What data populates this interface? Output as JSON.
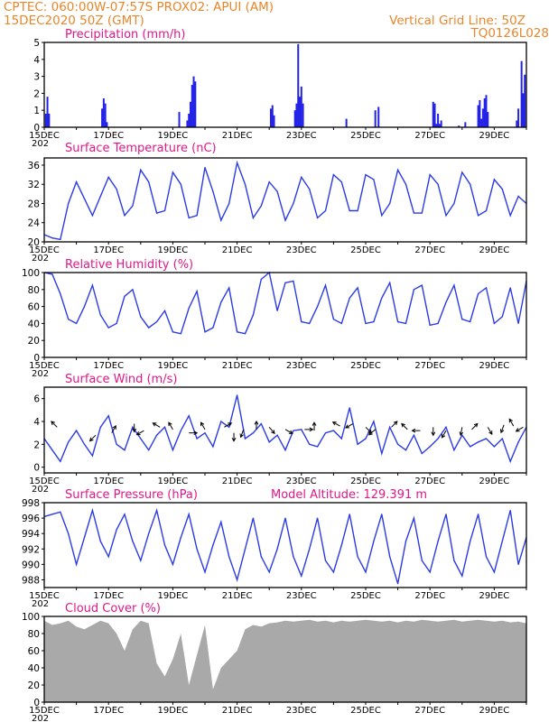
{
  "header": {
    "line1": "CPTEC:   060:00W-07:57S   PROX02: APUI (AM)",
    "line2_left": "15DEC2020 50Z (GMT)",
    "line2_right": "Vertical Grid Line: 50Z",
    "line3_right": "TQ0126L028"
  },
  "x_axis": {
    "start_label": "15DEC",
    "year_stub": "202",
    "days": 15,
    "tick_labels": [
      "15DEC",
      "17DEC",
      "19DEC",
      "21DEC",
      "23DEC",
      "25DEC",
      "27DEC",
      "29DEC"
    ]
  },
  "colors": {
    "line": "#2b3be6",
    "bar": "#2323e8",
    "cloud": "#a9a9a9",
    "title": "#e0188a",
    "header": "#e8862a",
    "arrow": "#000000"
  },
  "chart_data": [
    {
      "type": "bar",
      "title": "Precipitation (mm/h)",
      "ylim": [
        0,
        5
      ],
      "yticks": [
        0,
        1,
        2,
        3,
        4,
        5
      ],
      "x": [
        0.05,
        0.1,
        0.15,
        1.8,
        1.85,
        1.9,
        1.95,
        4.2,
        4.45,
        4.5,
        4.55,
        4.6,
        4.65,
        4.7,
        7.05,
        7.1,
        7.15,
        7.8,
        7.85,
        7.9,
        7.95,
        8.0,
        8.05,
        9.4,
        10.3,
        10.4,
        12.1,
        12.15,
        12.2,
        12.25,
        12.3,
        12.35,
        12.9,
        13.1,
        13.5,
        13.55,
        13.6,
        13.65,
        13.7,
        13.75,
        13.8,
        14.7,
        14.75,
        14.85,
        14.9,
        14.95
      ],
      "values": [
        0.8,
        1.8,
        0.8,
        1.1,
        1.7,
        1.4,
        0.3,
        0.9,
        0.4,
        0.8,
        1.5,
        2.5,
        3.0,
        2.7,
        1.1,
        1.3,
        0.7,
        1.0,
        1.4,
        4.9,
        1.8,
        2.4,
        1.4,
        0.5,
        1.0,
        1.2,
        1.5,
        1.4,
        0.2,
        0.8,
        0.2,
        0.4,
        0.1,
        0.3,
        1.3,
        1.6,
        0.5,
        1.1,
        1.7,
        1.9,
        0.9,
        0.4,
        1.1,
        3.9,
        2.0,
        3.1
      ]
    },
    {
      "type": "line",
      "title": "Surface Temperature (nC)",
      "ylim": [
        20,
        37.5
      ],
      "yticks": [
        20,
        24,
        28,
        32,
        36
      ],
      "x": [
        0,
        0.25,
        0.5,
        0.75,
        1,
        1.25,
        1.5,
        1.75,
        2,
        2.25,
        2.5,
        2.75,
        3,
        3.25,
        3.5,
        3.75,
        4,
        4.25,
        4.5,
        4.75,
        5,
        5.25,
        5.5,
        5.75,
        6,
        6.25,
        6.5,
        6.75,
        7,
        7.25,
        7.5,
        7.75,
        8,
        8.25,
        8.5,
        8.75,
        9,
        9.25,
        9.5,
        9.75,
        10,
        10.25,
        10.5,
        10.75,
        11,
        11.25,
        11.5,
        11.75,
        12,
        12.25,
        12.5,
        12.75,
        13,
        13.25,
        13.5,
        13.75,
        14,
        14.25,
        14.5,
        14.75,
        15
      ],
      "values": [
        21.5,
        20.8,
        20.5,
        28,
        32.5,
        29,
        25.5,
        29.5,
        33.5,
        31,
        25.5,
        27.5,
        35,
        32.5,
        26,
        26.5,
        34.5,
        32,
        25,
        25.5,
        35.5,
        30.5,
        24.5,
        28,
        36.5,
        32,
        25,
        27.5,
        32.5,
        30.5,
        24.5,
        28,
        33.5,
        31,
        25,
        26.5,
        34,
        32.5,
        26.5,
        26.5,
        34,
        33,
        25.5,
        28,
        35,
        32,
        26,
        26,
        34,
        32,
        25.5,
        28,
        34.5,
        32,
        25.5,
        26.5,
        33,
        31,
        25.5,
        29.5,
        28
      ]
    },
    {
      "type": "line",
      "title": "Relative Humidity (%)",
      "ylim": [
        0,
        100
      ],
      "yticks": [
        0,
        20,
        40,
        60,
        80,
        100
      ],
      "x": [
        0,
        0.25,
        0.5,
        0.75,
        1,
        1.25,
        1.5,
        1.75,
        2,
        2.25,
        2.5,
        2.75,
        3,
        3.25,
        3.5,
        3.75,
        4,
        4.25,
        4.5,
        4.75,
        5,
        5.25,
        5.5,
        5.75,
        6,
        6.25,
        6.5,
        6.75,
        7,
        7.25,
        7.5,
        7.75,
        8,
        8.25,
        8.5,
        8.75,
        9,
        9.25,
        9.5,
        9.75,
        10,
        10.25,
        10.5,
        10.75,
        11,
        11.25,
        11.5,
        11.75,
        12,
        12.25,
        12.5,
        12.75,
        13,
        13.25,
        13.5,
        13.75,
        14,
        14.25,
        14.5,
        14.75,
        15
      ],
      "values": [
        100,
        98,
        75,
        45,
        40,
        60,
        85,
        50,
        35,
        40,
        72,
        80,
        48,
        35,
        42,
        55,
        30,
        28,
        58,
        78,
        30,
        35,
        65,
        82,
        30,
        28,
        50,
        92,
        100,
        55,
        88,
        90,
        42,
        40,
        60,
        85,
        45,
        40,
        70,
        82,
        40,
        42,
        70,
        88,
        42,
        40,
        80,
        85,
        38,
        40,
        65,
        85,
        45,
        42,
        75,
        82,
        40,
        48,
        82,
        40,
        90
      ]
    },
    {
      "type": "line",
      "title": "Surface Wind (m/s)",
      "ylim": [
        -0.5,
        7
      ],
      "yticks": [
        0,
        2,
        4,
        6
      ],
      "x": [
        0,
        0.25,
        0.5,
        0.75,
        1,
        1.25,
        1.5,
        1.75,
        2,
        2.25,
        2.5,
        2.75,
        3,
        3.25,
        3.5,
        3.75,
        4,
        4.25,
        4.5,
        4.75,
        5,
        5.25,
        5.5,
        5.75,
        6,
        6.25,
        6.5,
        6.75,
        7,
        7.25,
        7.5,
        7.75,
        8,
        8.25,
        8.5,
        8.75,
        9,
        9.25,
        9.5,
        9.75,
        10,
        10.25,
        10.5,
        10.75,
        11,
        11.25,
        11.5,
        11.75,
        12,
        12.25,
        12.5,
        12.75,
        13,
        13.25,
        13.5,
        13.75,
        14,
        14.25,
        14.5,
        14.75,
        15
      ],
      "values": [
        2.5,
        1.5,
        0.5,
        2.2,
        3.2,
        2,
        1,
        3.5,
        4.5,
        2,
        1.5,
        3.5,
        2.5,
        1.5,
        2.8,
        3.5,
        1.5,
        3.2,
        4.5,
        2.5,
        3,
        1.8,
        4,
        3.5,
        6.3,
        2.5,
        3,
        3.8,
        2.2,
        2.8,
        1.5,
        3.2,
        3.3,
        2,
        1.8,
        3,
        3.2,
        2.5,
        5.2,
        2,
        2.5,
        4,
        1.2,
        3.5,
        2,
        1.5,
        2.8,
        1.2,
        1.8,
        2.5,
        3.5,
        1.5,
        2.8,
        1.8,
        2.2,
        2.5,
        1.8,
        2.5,
        0.5,
        2.2,
        3.5
      ],
      "wind_arrows": [
        [
          0.4,
          3.5,
          135
        ],
        [
          1.6,
          2.8,
          225
        ],
        [
          2.1,
          3.0,
          60
        ],
        [
          2.8,
          3.8,
          270
        ],
        [
          3.1,
          3.2,
          210
        ],
        [
          3.6,
          3.5,
          150
        ],
        [
          4.0,
          3.3,
          120
        ],
        [
          4.5,
          3.0,
          0
        ],
        [
          5.0,
          3.3,
          120
        ],
        [
          5.6,
          3.5,
          30
        ],
        [
          5.9,
          3.0,
          270
        ],
        [
          6.2,
          3.3,
          250
        ],
        [
          6.6,
          3.3,
          90
        ],
        [
          7.0,
          3.5,
          310
        ],
        [
          7.5,
          3.3,
          330
        ],
        [
          8.1,
          3.3,
          0
        ],
        [
          8.4,
          3.2,
          90
        ],
        [
          9.2,
          3.6,
          150
        ],
        [
          9.6,
          3.8,
          210
        ],
        [
          10.0,
          3.5,
          315
        ],
        [
          10.3,
          3.3,
          220
        ],
        [
          10.8,
          3.5,
          45
        ],
        [
          11.3,
          3.3,
          135
        ],
        [
          11.7,
          3.2,
          180
        ],
        [
          12.1,
          3.5,
          270
        ],
        [
          12.5,
          3.2,
          240
        ],
        [
          13.0,
          3.5,
          260
        ],
        [
          13.3,
          3.3,
          45
        ],
        [
          13.8,
          3.5,
          300
        ],
        [
          14.3,
          3.7,
          250
        ],
        [
          14.6,
          3.6,
          120
        ],
        [
          14.9,
          3.5,
          210
        ]
      ]
    },
    {
      "type": "line",
      "title": "Surface Pressure (hPa)",
      "annotation": "Model Altitude: 129.391 m",
      "ylim": [
        987,
        998
      ],
      "yticks": [
        988,
        990,
        992,
        994,
        996,
        998
      ],
      "x": [
        0,
        0.25,
        0.5,
        0.75,
        1,
        1.25,
        1.5,
        1.75,
        2,
        2.25,
        2.5,
        2.75,
        3,
        3.25,
        3.5,
        3.75,
        4,
        4.25,
        4.5,
        4.75,
        5,
        5.25,
        5.5,
        5.75,
        6,
        6.25,
        6.5,
        6.75,
        7,
        7.25,
        7.5,
        7.75,
        8,
        8.25,
        8.5,
        8.75,
        9,
        9.25,
        9.5,
        9.75,
        10,
        10.25,
        10.5,
        10.75,
        11,
        11.25,
        11.5,
        11.75,
        12,
        12.25,
        12.5,
        12.75,
        13,
        13.25,
        13.5,
        13.75,
        14,
        14.25,
        14.5,
        14.75,
        15
      ],
      "values": [
        996.2,
        996.5,
        996.8,
        994,
        990,
        993.5,
        997,
        993,
        991,
        994.5,
        996.5,
        993,
        990.5,
        994,
        997,
        992.5,
        990,
        993.5,
        996.5,
        992,
        989,
        992.5,
        995.5,
        991,
        988,
        992,
        996,
        991,
        989,
        992,
        996,
        991,
        988.5,
        992,
        996,
        990.5,
        989,
        992.5,
        996.5,
        991,
        989,
        993,
        996.5,
        991,
        987.5,
        993,
        996,
        990.5,
        989,
        993,
        996.5,
        990.5,
        988.5,
        993,
        996.5,
        991,
        989,
        993,
        997,
        990,
        993.5
      ]
    },
    {
      "type": "area",
      "title": "Cloud Cover (%)",
      "ylim": [
        0,
        100
      ],
      "yticks": [
        0,
        20,
        40,
        60,
        80,
        100
      ],
      "x": [
        0,
        0.25,
        0.5,
        0.75,
        1,
        1.25,
        1.5,
        1.75,
        2,
        2.25,
        2.5,
        2.75,
        3,
        3.25,
        3.5,
        3.75,
        4,
        4.25,
        4.5,
        4.75,
        5,
        5.25,
        5.5,
        5.75,
        6,
        6.25,
        6.5,
        6.75,
        7,
        7.25,
        7.5,
        7.75,
        8,
        8.25,
        8.5,
        8.75,
        9,
        9.25,
        9.5,
        9.75,
        10,
        10.25,
        10.5,
        10.75,
        11,
        11.25,
        11.5,
        11.75,
        12,
        12.25,
        12.5,
        12.75,
        13,
        13.25,
        13.5,
        13.75,
        14,
        14.25,
        14.5,
        14.75,
        15
      ],
      "values": [
        95,
        90,
        92,
        95,
        88,
        85,
        90,
        95,
        92,
        80,
        60,
        85,
        95,
        92,
        45,
        30,
        50,
        80,
        20,
        55,
        90,
        15,
        40,
        50,
        60,
        85,
        90,
        88,
        92,
        93,
        95,
        94,
        95,
        96,
        94,
        95,
        93,
        95,
        94,
        95,
        96,
        95,
        94,
        95,
        93,
        95,
        94,
        96,
        95,
        94,
        95,
        96,
        94,
        95,
        96,
        95,
        94,
        95,
        93,
        94,
        92
      ]
    }
  ]
}
